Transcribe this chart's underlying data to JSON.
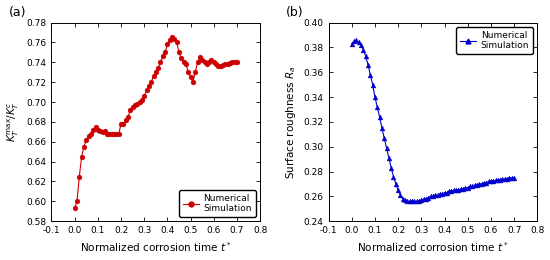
{
  "panel_a": {
    "label": "(a)",
    "xlabel": "Normalized corrosion time $t^*$",
    "ylabel": "$K_T^{\\mathrm{max}}/K_T^c$",
    "xlim": [
      -0.1,
      0.8
    ],
    "ylim": [
      0.58,
      0.78
    ],
    "xticks": [
      -0.1,
      0.0,
      0.1,
      0.2,
      0.3,
      0.4,
      0.5,
      0.6,
      0.7,
      0.8
    ],
    "xticklabels": [
      "-0.1",
      "0.0",
      "0.1",
      "0.2",
      "0.3",
      "0.4",
      "0.5",
      "0.6",
      "0.7",
      "0.8"
    ],
    "yticks": [
      0.58,
      0.6,
      0.62,
      0.64,
      0.66,
      0.68,
      0.7,
      0.72,
      0.74,
      0.76,
      0.78
    ],
    "yticklabels": [
      "0.58",
      "0.60",
      "0.62",
      "0.64",
      "0.66",
      "0.68",
      "0.70",
      "0.72",
      "0.74",
      "0.76",
      "0.78"
    ],
    "color": "#cc0000",
    "marker": "o",
    "markersize": 3.5,
    "legend_loc": "lower right",
    "x": [
      0.0,
      0.01,
      0.02,
      0.03,
      0.04,
      0.05,
      0.06,
      0.07,
      0.08,
      0.09,
      0.1,
      0.11,
      0.12,
      0.13,
      0.14,
      0.15,
      0.16,
      0.17,
      0.18,
      0.19,
      0.2,
      0.21,
      0.22,
      0.23,
      0.24,
      0.25,
      0.26,
      0.27,
      0.28,
      0.29,
      0.3,
      0.31,
      0.32,
      0.33,
      0.34,
      0.35,
      0.36,
      0.37,
      0.38,
      0.39,
      0.4,
      0.41,
      0.42,
      0.43,
      0.44,
      0.45,
      0.46,
      0.47,
      0.48,
      0.49,
      0.5,
      0.51,
      0.52,
      0.53,
      0.54,
      0.55,
      0.56,
      0.57,
      0.58,
      0.59,
      0.6,
      0.61,
      0.62,
      0.63,
      0.64,
      0.65,
      0.66,
      0.67,
      0.68,
      0.69,
      0.7
    ],
    "y": [
      0.593,
      0.6,
      0.625,
      0.645,
      0.655,
      0.662,
      0.666,
      0.668,
      0.672,
      0.675,
      0.672,
      0.671,
      0.67,
      0.671,
      0.668,
      0.668,
      0.668,
      0.668,
      0.668,
      0.668,
      0.678,
      0.678,
      0.682,
      0.685,
      0.692,
      0.695,
      0.697,
      0.698,
      0.7,
      0.702,
      0.706,
      0.712,
      0.716,
      0.72,
      0.726,
      0.73,
      0.734,
      0.74,
      0.746,
      0.75,
      0.758,
      0.762,
      0.765,
      0.763,
      0.76,
      0.75,
      0.744,
      0.74,
      0.738,
      0.73,
      0.725,
      0.72,
      0.73,
      0.74,
      0.745,
      0.742,
      0.74,
      0.738,
      0.74,
      0.742,
      0.74,
      0.738,
      0.736,
      0.736,
      0.737,
      0.738,
      0.738,
      0.739,
      0.74,
      0.74,
      0.74
    ]
  },
  "panel_b": {
    "label": "(b)",
    "xlabel": "Normalized corrosion time $t^*$",
    "ylabel": "Surface roughness $R_a$",
    "xlim": [
      -0.1,
      0.8
    ],
    "ylim": [
      0.24,
      0.4
    ],
    "xticks": [
      -0.1,
      0.0,
      0.1,
      0.2,
      0.3,
      0.4,
      0.5,
      0.6,
      0.7,
      0.8
    ],
    "xticklabels": [
      "-0.1",
      "0.0",
      "0.1",
      "0.2",
      "0.3",
      "0.4",
      "0.5",
      "0.6",
      "0.7",
      "0.8"
    ],
    "yticks": [
      0.24,
      0.26,
      0.28,
      0.3,
      0.32,
      0.34,
      0.36,
      0.38,
      0.4
    ],
    "yticklabels": [
      "0.24",
      "0.26",
      "0.28",
      "0.30",
      "0.32",
      "0.34",
      "0.36",
      "0.38",
      "0.40"
    ],
    "color": "#0000cc",
    "marker": "^",
    "markersize": 3.5,
    "legend_loc": "upper right",
    "x": [
      0.0,
      0.01,
      0.02,
      0.03,
      0.04,
      0.05,
      0.06,
      0.07,
      0.08,
      0.09,
      0.1,
      0.11,
      0.12,
      0.13,
      0.14,
      0.15,
      0.16,
      0.17,
      0.18,
      0.19,
      0.2,
      0.21,
      0.22,
      0.23,
      0.24,
      0.25,
      0.26,
      0.27,
      0.28,
      0.29,
      0.3,
      0.31,
      0.32,
      0.33,
      0.34,
      0.35,
      0.36,
      0.37,
      0.38,
      0.39,
      0.4,
      0.41,
      0.42,
      0.43,
      0.44,
      0.45,
      0.46,
      0.47,
      0.48,
      0.49,
      0.5,
      0.51,
      0.52,
      0.53,
      0.54,
      0.55,
      0.56,
      0.57,
      0.58,
      0.59,
      0.6,
      0.61,
      0.62,
      0.63,
      0.64,
      0.65,
      0.66,
      0.67,
      0.68,
      0.69,
      0.7
    ],
    "y": [
      0.383,
      0.385,
      0.386,
      0.384,
      0.382,
      0.378,
      0.373,
      0.366,
      0.358,
      0.35,
      0.34,
      0.332,
      0.324,
      0.315,
      0.307,
      0.299,
      0.291,
      0.283,
      0.276,
      0.27,
      0.265,
      0.261,
      0.258,
      0.257,
      0.256,
      0.256,
      0.256,
      0.256,
      0.256,
      0.256,
      0.257,
      0.258,
      0.258,
      0.259,
      0.26,
      0.26,
      0.261,
      0.261,
      0.262,
      0.262,
      0.263,
      0.263,
      0.264,
      0.264,
      0.265,
      0.265,
      0.265,
      0.266,
      0.266,
      0.267,
      0.267,
      0.268,
      0.268,
      0.269,
      0.269,
      0.27,
      0.27,
      0.271,
      0.271,
      0.272,
      0.272,
      0.272,
      0.273,
      0.273,
      0.273,
      0.274,
      0.274,
      0.274,
      0.275,
      0.275,
      0.275
    ]
  },
  "fig_width": 5.5,
  "fig_height": 2.6,
  "dpi": 100
}
